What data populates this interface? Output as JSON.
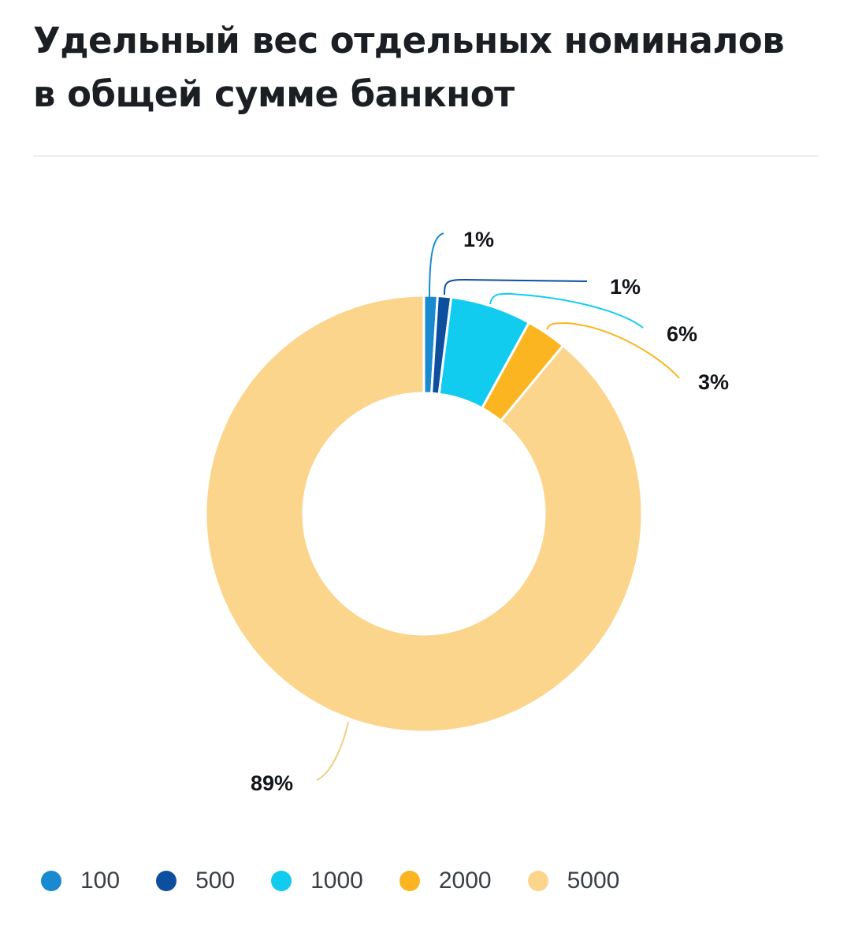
{
  "title": {
    "line1": "Удельный вес отдельных номиналов",
    "line2": "в общей сумме банкнот"
  },
  "chart_data": {
    "type": "pie",
    "donut": true,
    "categories": [
      "100",
      "500",
      "1000",
      "2000",
      "5000"
    ],
    "values": [
      1,
      1,
      6,
      3,
      89
    ],
    "labels": [
      "1%",
      "1%",
      "6%",
      "3%",
      "89%"
    ],
    "colors": [
      "#1a8ad0",
      "#0d4f9e",
      "#12ccef",
      "#fbb521",
      "#fcd58d"
    ],
    "legend_position": "bottom-left",
    "title": "Удельный вес отдельных номиналов в общей сумме банкнот"
  }
}
